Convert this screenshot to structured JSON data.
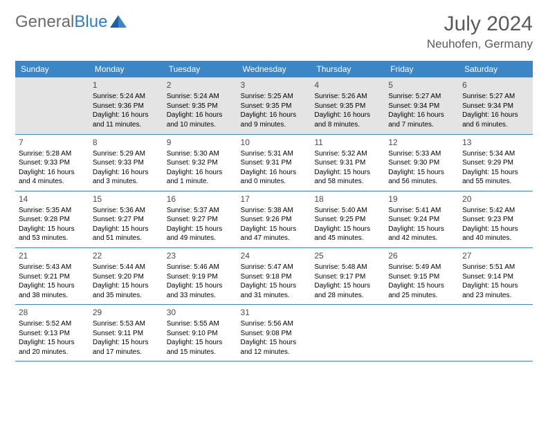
{
  "brand": {
    "part1": "General",
    "part2": "Blue"
  },
  "title": "July 2024",
  "location": "Neuhofen, Germany",
  "colors": {
    "header_bg": "#3d86c6",
    "header_text": "#ffffff",
    "row_border": "#3d86c6",
    "first_row_bg": "#e4e4e4",
    "title_color": "#5a5a5a",
    "body_bg": "#ffffff"
  },
  "weekday_headers": [
    "Sunday",
    "Monday",
    "Tuesday",
    "Wednesday",
    "Thursday",
    "Friday",
    "Saturday"
  ],
  "weeks": [
    [
      null,
      {
        "n": "1",
        "sr": "Sunrise: 5:24 AM",
        "ss": "Sunset: 9:36 PM",
        "d1": "Daylight: 16 hours",
        "d2": "and 11 minutes."
      },
      {
        "n": "2",
        "sr": "Sunrise: 5:24 AM",
        "ss": "Sunset: 9:35 PM",
        "d1": "Daylight: 16 hours",
        "d2": "and 10 minutes."
      },
      {
        "n": "3",
        "sr": "Sunrise: 5:25 AM",
        "ss": "Sunset: 9:35 PM",
        "d1": "Daylight: 16 hours",
        "d2": "and 9 minutes."
      },
      {
        "n": "4",
        "sr": "Sunrise: 5:26 AM",
        "ss": "Sunset: 9:35 PM",
        "d1": "Daylight: 16 hours",
        "d2": "and 8 minutes."
      },
      {
        "n": "5",
        "sr": "Sunrise: 5:27 AM",
        "ss": "Sunset: 9:34 PM",
        "d1": "Daylight: 16 hours",
        "d2": "and 7 minutes."
      },
      {
        "n": "6",
        "sr": "Sunrise: 5:27 AM",
        "ss": "Sunset: 9:34 PM",
        "d1": "Daylight: 16 hours",
        "d2": "and 6 minutes."
      }
    ],
    [
      {
        "n": "7",
        "sr": "Sunrise: 5:28 AM",
        "ss": "Sunset: 9:33 PM",
        "d1": "Daylight: 16 hours",
        "d2": "and 4 minutes."
      },
      {
        "n": "8",
        "sr": "Sunrise: 5:29 AM",
        "ss": "Sunset: 9:33 PM",
        "d1": "Daylight: 16 hours",
        "d2": "and 3 minutes."
      },
      {
        "n": "9",
        "sr": "Sunrise: 5:30 AM",
        "ss": "Sunset: 9:32 PM",
        "d1": "Daylight: 16 hours",
        "d2": "and 1 minute."
      },
      {
        "n": "10",
        "sr": "Sunrise: 5:31 AM",
        "ss": "Sunset: 9:31 PM",
        "d1": "Daylight: 16 hours",
        "d2": "and 0 minutes."
      },
      {
        "n": "11",
        "sr": "Sunrise: 5:32 AM",
        "ss": "Sunset: 9:31 PM",
        "d1": "Daylight: 15 hours",
        "d2": "and 58 minutes."
      },
      {
        "n": "12",
        "sr": "Sunrise: 5:33 AM",
        "ss": "Sunset: 9:30 PM",
        "d1": "Daylight: 15 hours",
        "d2": "and 56 minutes."
      },
      {
        "n": "13",
        "sr": "Sunrise: 5:34 AM",
        "ss": "Sunset: 9:29 PM",
        "d1": "Daylight: 15 hours",
        "d2": "and 55 minutes."
      }
    ],
    [
      {
        "n": "14",
        "sr": "Sunrise: 5:35 AM",
        "ss": "Sunset: 9:28 PM",
        "d1": "Daylight: 15 hours",
        "d2": "and 53 minutes."
      },
      {
        "n": "15",
        "sr": "Sunrise: 5:36 AM",
        "ss": "Sunset: 9:27 PM",
        "d1": "Daylight: 15 hours",
        "d2": "and 51 minutes."
      },
      {
        "n": "16",
        "sr": "Sunrise: 5:37 AM",
        "ss": "Sunset: 9:27 PM",
        "d1": "Daylight: 15 hours",
        "d2": "and 49 minutes."
      },
      {
        "n": "17",
        "sr": "Sunrise: 5:38 AM",
        "ss": "Sunset: 9:26 PM",
        "d1": "Daylight: 15 hours",
        "d2": "and 47 minutes."
      },
      {
        "n": "18",
        "sr": "Sunrise: 5:40 AM",
        "ss": "Sunset: 9:25 PM",
        "d1": "Daylight: 15 hours",
        "d2": "and 45 minutes."
      },
      {
        "n": "19",
        "sr": "Sunrise: 5:41 AM",
        "ss": "Sunset: 9:24 PM",
        "d1": "Daylight: 15 hours",
        "d2": "and 42 minutes."
      },
      {
        "n": "20",
        "sr": "Sunrise: 5:42 AM",
        "ss": "Sunset: 9:23 PM",
        "d1": "Daylight: 15 hours",
        "d2": "and 40 minutes."
      }
    ],
    [
      {
        "n": "21",
        "sr": "Sunrise: 5:43 AM",
        "ss": "Sunset: 9:21 PM",
        "d1": "Daylight: 15 hours",
        "d2": "and 38 minutes."
      },
      {
        "n": "22",
        "sr": "Sunrise: 5:44 AM",
        "ss": "Sunset: 9:20 PM",
        "d1": "Daylight: 15 hours",
        "d2": "and 35 minutes."
      },
      {
        "n": "23",
        "sr": "Sunrise: 5:46 AM",
        "ss": "Sunset: 9:19 PM",
        "d1": "Daylight: 15 hours",
        "d2": "and 33 minutes."
      },
      {
        "n": "24",
        "sr": "Sunrise: 5:47 AM",
        "ss": "Sunset: 9:18 PM",
        "d1": "Daylight: 15 hours",
        "d2": "and 31 minutes."
      },
      {
        "n": "25",
        "sr": "Sunrise: 5:48 AM",
        "ss": "Sunset: 9:17 PM",
        "d1": "Daylight: 15 hours",
        "d2": "and 28 minutes."
      },
      {
        "n": "26",
        "sr": "Sunrise: 5:49 AM",
        "ss": "Sunset: 9:15 PM",
        "d1": "Daylight: 15 hours",
        "d2": "and 25 minutes."
      },
      {
        "n": "27",
        "sr": "Sunrise: 5:51 AM",
        "ss": "Sunset: 9:14 PM",
        "d1": "Daylight: 15 hours",
        "d2": "and 23 minutes."
      }
    ],
    [
      {
        "n": "28",
        "sr": "Sunrise: 5:52 AM",
        "ss": "Sunset: 9:13 PM",
        "d1": "Daylight: 15 hours",
        "d2": "and 20 minutes."
      },
      {
        "n": "29",
        "sr": "Sunrise: 5:53 AM",
        "ss": "Sunset: 9:11 PM",
        "d1": "Daylight: 15 hours",
        "d2": "and 17 minutes."
      },
      {
        "n": "30",
        "sr": "Sunrise: 5:55 AM",
        "ss": "Sunset: 9:10 PM",
        "d1": "Daylight: 15 hours",
        "d2": "and 15 minutes."
      },
      {
        "n": "31",
        "sr": "Sunrise: 5:56 AM",
        "ss": "Sunset: 9:08 PM",
        "d1": "Daylight: 15 hours",
        "d2": "and 12 minutes."
      },
      null,
      null,
      null
    ]
  ]
}
